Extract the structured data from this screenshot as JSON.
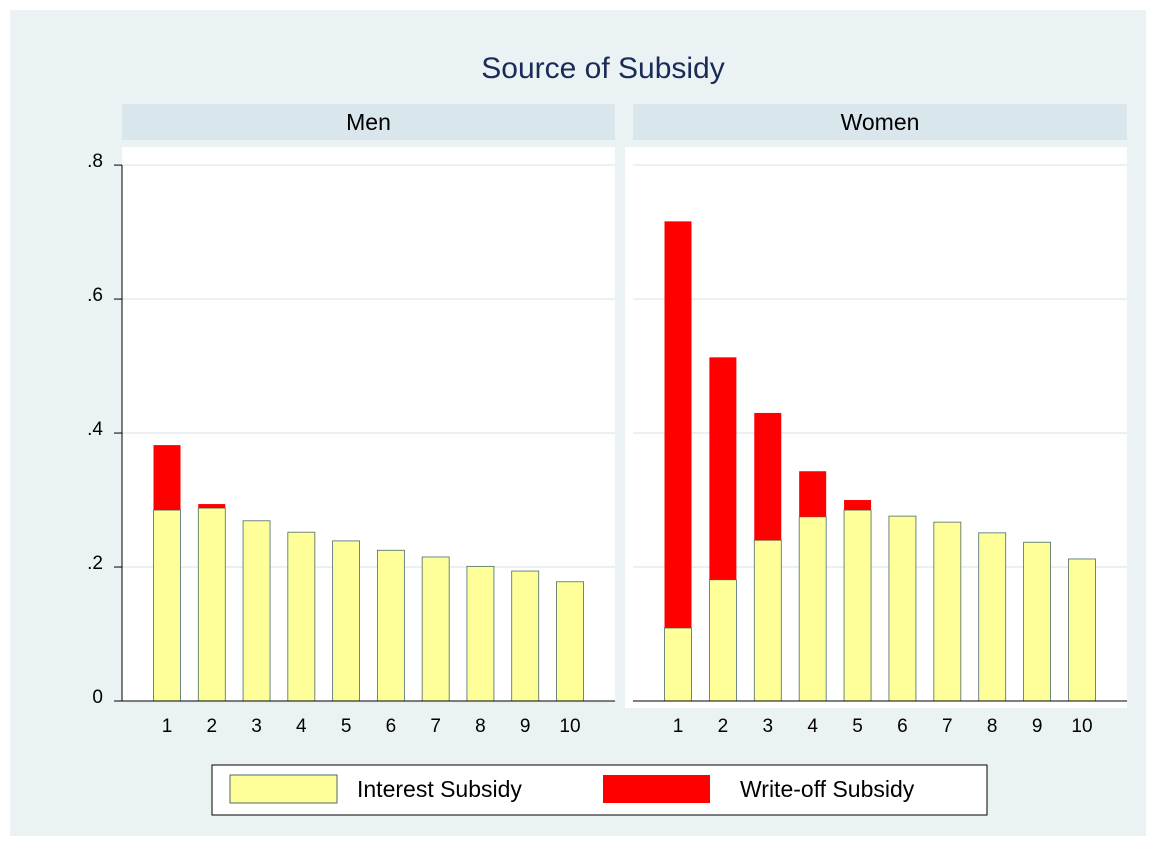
{
  "chart_data": {
    "type": "bar",
    "stacked": true,
    "title": "Source of Subsidy",
    "categories": [
      "1",
      "2",
      "3",
      "4",
      "5",
      "6",
      "7",
      "8",
      "9",
      "10"
    ],
    "ylim": [
      0,
      0.827
    ],
    "yticks": [
      0,
      {
        "value": 0.2,
        "label": ".2"
      },
      {
        "value": 0.4,
        "label": ".4"
      },
      {
        "value": 0.6,
        "label": ".6"
      },
      {
        "value": 0.8,
        "label": ".8"
      }
    ],
    "grid": true,
    "series": [
      {
        "name": "Interest Subsidy",
        "color": "#ffff99"
      },
      {
        "name": "Write-off Subsidy",
        "color": "#ff0000"
      }
    ],
    "panels": [
      {
        "title": "Men",
        "series": [
          {
            "values": [
              0.285,
              0.288,
              0.269,
              0.252,
              0.239,
              0.225,
              0.215,
              0.201,
              0.194,
              0.178
            ]
          },
          {
            "values": [
              0.097,
              0.006,
              0,
              0,
              0,
              0,
              0,
              0,
              0,
              0
            ]
          }
        ]
      },
      {
        "title": "Women",
        "series": [
          {
            "values": [
              0.109,
              0.181,
              0.24,
              0.275,
              0.285,
              0.276,
              0.267,
              0.251,
              0.237,
              0.212
            ]
          },
          {
            "values": [
              0.607,
              0.332,
              0.19,
              0.068,
              0.015,
              0,
              0,
              0,
              0,
              0
            ]
          }
        ]
      }
    ]
  }
}
